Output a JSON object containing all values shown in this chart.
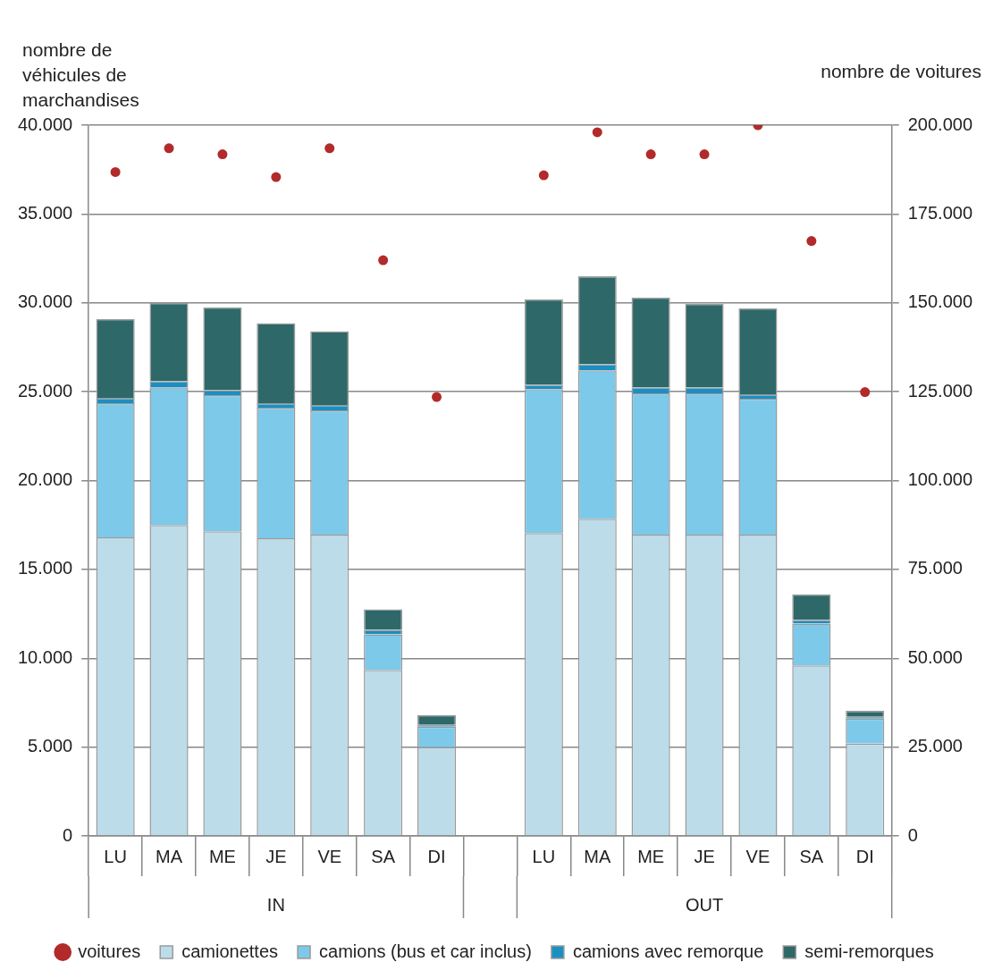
{
  "chart_data": {
    "type": "bar",
    "stacked": true,
    "ylabel": "nombre de véhicules de marchandises",
    "y2label": "nombre de voitures",
    "categories": [
      "LU",
      "MA",
      "ME",
      "JE",
      "VE",
      "SA",
      "DI",
      null,
      "LU",
      "MA",
      "ME",
      "JE",
      "VE",
      "SA",
      "DI"
    ],
    "annotations": [
      "IN",
      "OUT"
    ],
    "series": [
      {
        "name": "camionettes",
        "color": "#bcdcea",
        "values": [
          16800,
          17500,
          17150,
          16750,
          16950,
          9350,
          5000,
          null,
          17050,
          17850,
          16950,
          16950,
          16950,
          9600,
          5200
        ]
      },
      {
        "name": "camions (bus et car inclus)",
        "color": "#7dc9ea",
        "values": [
          7550,
          7750,
          7650,
          7350,
          7000,
          2000,
          1150,
          null,
          8100,
          8350,
          7950,
          7950,
          7650,
          2350,
          1400
        ]
      },
      {
        "name": "camions avec remorque",
        "color": "#1a8fc4",
        "values": [
          300,
          350,
          300,
          250,
          300,
          250,
          100,
          null,
          250,
          350,
          350,
          350,
          250,
          200,
          100
        ]
      },
      {
        "name": "semi-remorques",
        "color": "#2e6868",
        "values": [
          4450,
          4400,
          4650,
          4500,
          4150,
          1150,
          550,
          null,
          4800,
          4950,
          5050,
          4700,
          4850,
          1450,
          350
        ]
      },
      {
        "name": "voitures",
        "type": "scatter",
        "axis": "y2",
        "marker": "circle",
        "color": "#b22a2a",
        "values": [
          186800,
          193500,
          191800,
          185400,
          193500,
          162000,
          123500,
          null,
          185900,
          198000,
          191800,
          191800,
          200000,
          167400,
          124900
        ]
      }
    ],
    "ylim": [
      0,
      40000
    ],
    "yticks": [
      0,
      {
        "value": 5000,
        "label": "5.000"
      },
      {
        "value": 10000,
        "label": "10.000"
      },
      {
        "value": 15000,
        "label": "15.000"
      },
      {
        "value": 20000,
        "label": "20.000"
      },
      {
        "value": 25000,
        "label": "25.000"
      },
      {
        "value": 30000,
        "label": "30.000"
      },
      {
        "value": 35000,
        "label": "35.000"
      },
      {
        "value": 40000,
        "label": "40.000"
      }
    ],
    "y2lim": [
      0,
      200000
    ],
    "y2ticks": [
      0,
      {
        "value": 25000,
        "label": "25.000"
      },
      {
        "value": 50000,
        "label": "50.000"
      },
      {
        "value": 75000,
        "label": "75.000"
      },
      {
        "value": 100000,
        "label": "100.000"
      },
      {
        "value": 125000,
        "label": "125.000"
      },
      {
        "value": 150000,
        "label": "150.000"
      },
      {
        "value": 175000,
        "label": "175.000"
      },
      {
        "value": 200000,
        "label": "200.000"
      }
    ],
    "grid": "y",
    "legend": "bottom"
  }
}
